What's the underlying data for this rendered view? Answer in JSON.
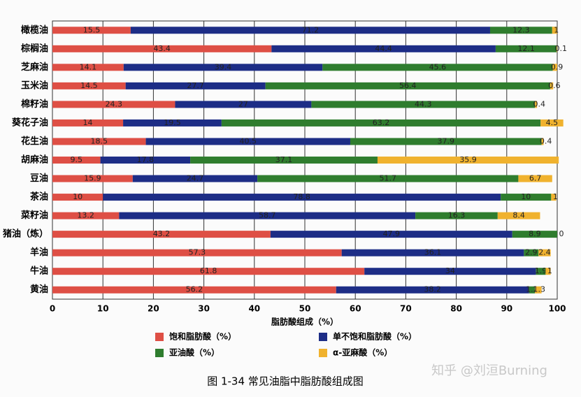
{
  "chart_data": {
    "type": "stacked-barh",
    "caption": "图 1-34  常见油脂中脂肪酸组成图",
    "watermark": "知乎 @刘洹Burning",
    "xlabel": "脂肪酸组成（%）",
    "categories": [
      "橄榄油",
      "棕榈油",
      "芝麻油",
      "玉米油",
      "棉籽油",
      "葵花子油",
      "花生油",
      "胡麻油",
      "豆油",
      "茶油",
      "菜籽油",
      "猪油（炼）",
      "羊油",
      "牛油",
      "黄油"
    ],
    "series": [
      {
        "name": "饱和脂肪酸（%）",
        "color": "#de4f45",
        "values": [
          15.5,
          43.4,
          14.1,
          14.5,
          24.3,
          14,
          18.5,
          9.5,
          15.9,
          10,
          13.2,
          43.2,
          57.3,
          61.8,
          56.2
        ]
      },
      {
        "name": "单不饱和脂肪酸（%）",
        "color": "#1d2d86",
        "values": [
          71.2,
          44.4,
          39.4,
          27.7,
          27,
          19.5,
          40.5,
          17.8,
          24.7,
          78.8,
          58.7,
          47.9,
          36.1,
          34,
          38.2
        ]
      },
      {
        "name": "亚油酸（%）",
        "color": "#2f7d2e",
        "values": [
          12.3,
          12.1,
          45.6,
          56.4,
          44.3,
          63.2,
          37.9,
          37.1,
          51.7,
          10,
          16.3,
          8.9,
          2.9,
          1.9,
          1.2
        ]
      },
      {
        "name": "α-亚麻酸（%）",
        "color": "#f0b22e",
        "values": [
          1,
          0.1,
          0.9,
          0.6,
          0.4,
          4.5,
          0.4,
          35.9,
          6.7,
          1,
          8.4,
          0,
          2.4,
          1,
          1.3
        ]
      }
    ],
    "xlim": [
      0,
      100
    ],
    "xticks": [
      0,
      10,
      20,
      30,
      40,
      50,
      60,
      70,
      80,
      90,
      100
    ],
    "grid": true
  }
}
